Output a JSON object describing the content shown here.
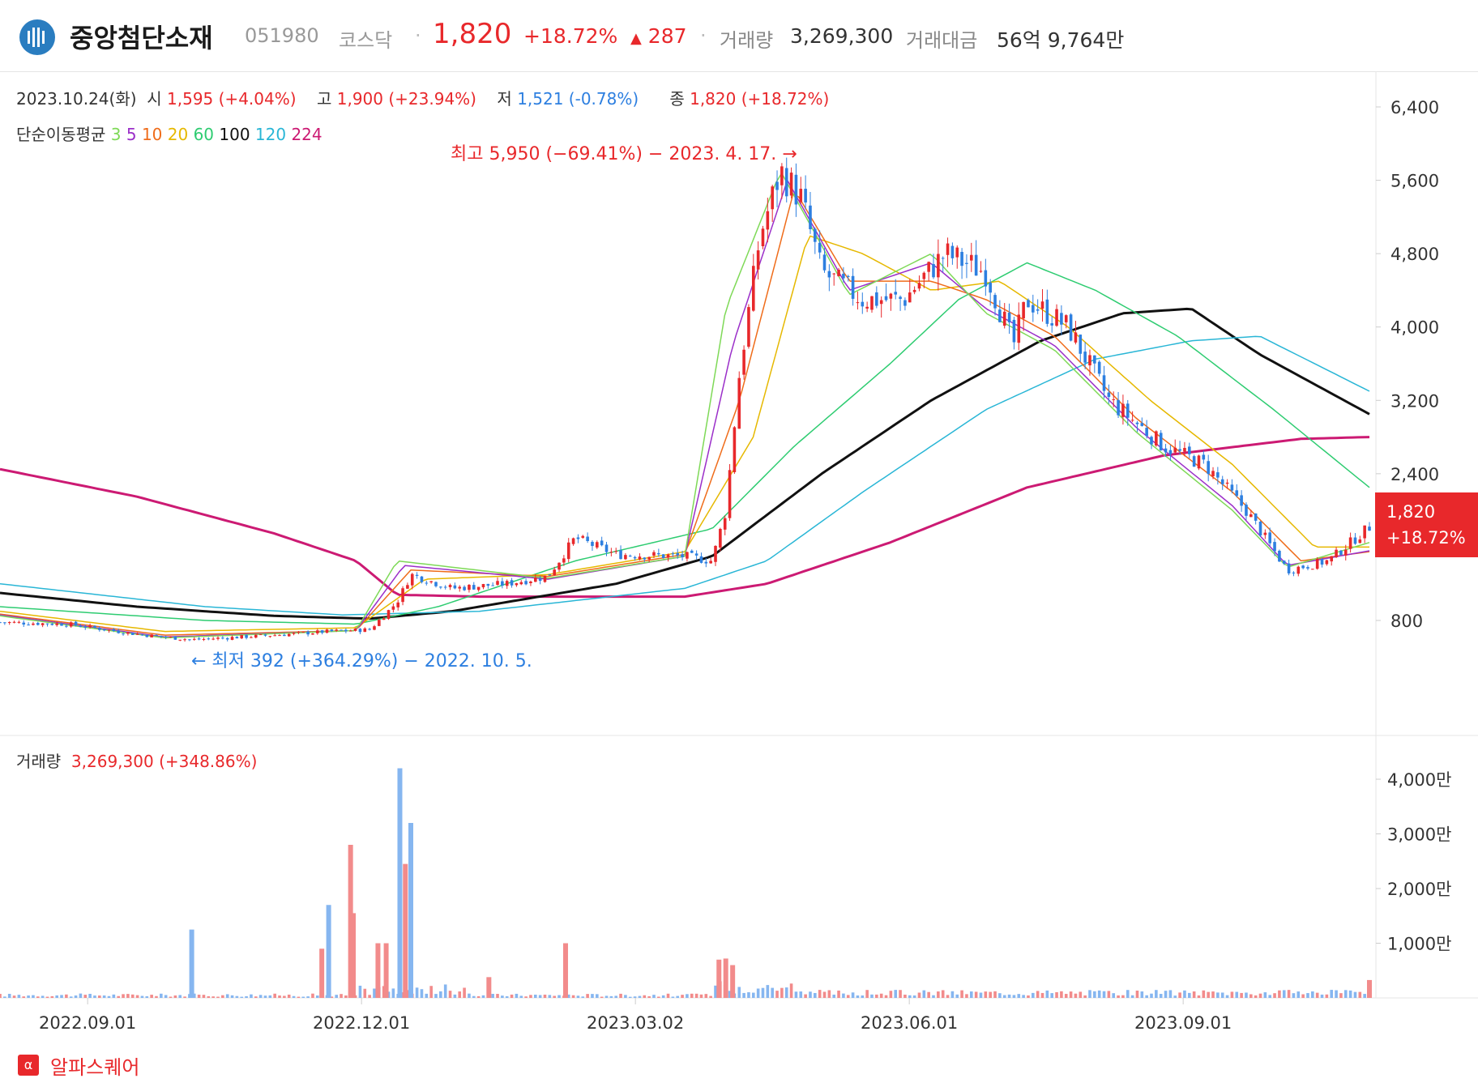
{
  "header": {
    "name": "중앙첨단소재",
    "code": "051980",
    "market": "코스닥",
    "price": "1,820",
    "change_pct": "+18.72%",
    "change_abs": "287",
    "volume_label": "거래량",
    "volume_value": "3,269,300",
    "amount_label": "거래대금",
    "amount_value": "56억 9,764만"
  },
  "ohlc": {
    "date": "2023.10.24(화)",
    "open_label": "시",
    "open_value": "1,595 (+4.04%)",
    "high_label": "고",
    "high_value": "1,900 (+23.94%)",
    "low_label": "저",
    "low_value": "1,521 (-0.78%)",
    "close_label": "종",
    "close_value": "1,820 (+18.72%)"
  },
  "ma_legend": {
    "label": "단순이동평균",
    "items": [
      {
        "text": "3",
        "color": "#7ed957"
      },
      {
        "text": "5",
        "color": "#9b2fc9"
      },
      {
        "text": "10",
        "color": "#ef6c1a"
      },
      {
        "text": "20",
        "color": "#e6b800"
      },
      {
        "text": "60",
        "color": "#2ecc71"
      },
      {
        "text": "100",
        "color": "#111111"
      },
      {
        "text": "120",
        "color": "#29b6d6"
      },
      {
        "text": "224",
        "color": "#cc1a73"
      }
    ]
  },
  "annotations": {
    "high": "최고 5,950 (−69.41%) − 2023. 4. 17. →",
    "low": "← 최저 392 (+364.29%) − 2022. 10. 5."
  },
  "price_badge": {
    "price": "1,820",
    "pct": "+18.72%"
  },
  "volume_header": {
    "label": "거래량",
    "value": "3,269,300 (+348.86%)"
  },
  "watermark": {
    "icon": "α",
    "text": "알파스퀘어"
  },
  "colors": {
    "up": "#f28b8b",
    "down": "#86b6f0",
    "up_line": "#e8282b",
    "down_line": "#2d7fe0"
  },
  "chart_data": {
    "type": "line",
    "price_axis": {
      "ticks": [
        800,
        1600,
        2400,
        3200,
        4000,
        4800,
        5600,
        6400
      ],
      "tick_labels": [
        "800",
        "",
        "2,400",
        "3,200",
        "4,000",
        "4,800",
        "5,600",
        "6,400"
      ]
    },
    "volume_axis": {
      "ticks": [
        1000,
        2000,
        3000,
        4000
      ],
      "tick_labels": [
        "1,000만",
        "2,000만",
        "3,000만",
        "4,000만"
      ],
      "unit": "만"
    },
    "date_labels": [
      "2022.09.01",
      "2022.12.01",
      "2023.03.02",
      "2023.06.01",
      "2023.09.01"
    ],
    "date_positions": [
      0.064,
      0.264,
      0.464,
      0.664,
      0.864
    ],
    "close": [
      {
        "t": 0.0,
        "v": 780
      },
      {
        "t": 0.05,
        "v": 760
      },
      {
        "t": 0.1,
        "v": 650
      },
      {
        "t": 0.14,
        "v": 590
      },
      {
        "t": 0.2,
        "v": 640
      },
      {
        "t": 0.24,
        "v": 680
      },
      {
        "t": 0.27,
        "v": 700
      },
      {
        "t": 0.29,
        "v": 1000
      },
      {
        "t": 0.3,
        "v": 1300
      },
      {
        "t": 0.33,
        "v": 1150
      },
      {
        "t": 0.37,
        "v": 1200
      },
      {
        "t": 0.4,
        "v": 1280
      },
      {
        "t": 0.42,
        "v": 1700
      },
      {
        "t": 0.45,
        "v": 1520
      },
      {
        "t": 0.5,
        "v": 1500
      },
      {
        "t": 0.52,
        "v": 1450
      },
      {
        "t": 0.53,
        "v": 2000
      },
      {
        "t": 0.54,
        "v": 3500
      },
      {
        "t": 0.555,
        "v": 5000
      },
      {
        "t": 0.57,
        "v": 5700
      },
      {
        "t": 0.585,
        "v": 5400
      },
      {
        "t": 0.6,
        "v": 4600
      },
      {
        "t": 0.63,
        "v": 4300
      },
      {
        "t": 0.66,
        "v": 4300
      },
      {
        "t": 0.69,
        "v": 4800
      },
      {
        "t": 0.72,
        "v": 4600
      },
      {
        "t": 0.74,
        "v": 3800
      },
      {
        "t": 0.75,
        "v": 4300
      },
      {
        "t": 0.78,
        "v": 4000
      },
      {
        "t": 0.81,
        "v": 3200
      },
      {
        "t": 0.85,
        "v": 2700
      },
      {
        "t": 0.88,
        "v": 2500
      },
      {
        "t": 0.91,
        "v": 2000
      },
      {
        "t": 0.94,
        "v": 1350
      },
      {
        "t": 0.97,
        "v": 1450
      },
      {
        "t": 1.0,
        "v": 1820
      }
    ],
    "ma": [
      {
        "name": "224",
        "color": "#cc1a73",
        "width": 3,
        "points": [
          {
            "t": 0,
            "v": 2450
          },
          {
            "t": 0.1,
            "v": 2150
          },
          {
            "t": 0.2,
            "v": 1750
          },
          {
            "t": 0.26,
            "v": 1450
          },
          {
            "t": 0.29,
            "v": 1080
          },
          {
            "t": 0.35,
            "v": 1060
          },
          {
            "t": 0.5,
            "v": 1060
          },
          {
            "t": 0.56,
            "v": 1200
          },
          {
            "t": 0.65,
            "v": 1650
          },
          {
            "t": 0.75,
            "v": 2250
          },
          {
            "t": 0.85,
            "v": 2600
          },
          {
            "t": 0.95,
            "v": 2780
          },
          {
            "t": 1.0,
            "v": 2800
          }
        ]
      },
      {
        "name": "100",
        "color": "#111111",
        "width": 3,
        "points": [
          {
            "t": 0,
            "v": 1100
          },
          {
            "t": 0.1,
            "v": 950
          },
          {
            "t": 0.2,
            "v": 850
          },
          {
            "t": 0.27,
            "v": 820
          },
          {
            "t": 0.33,
            "v": 900
          },
          {
            "t": 0.45,
            "v": 1200
          },
          {
            "t": 0.52,
            "v": 1500
          },
          {
            "t": 0.6,
            "v": 2400
          },
          {
            "t": 0.68,
            "v": 3200
          },
          {
            "t": 0.76,
            "v": 3850
          },
          {
            "t": 0.82,
            "v": 4150
          },
          {
            "t": 0.87,
            "v": 4200
          },
          {
            "t": 0.92,
            "v": 3700
          },
          {
            "t": 1.0,
            "v": 3050
          }
        ]
      },
      {
        "name": "120",
        "color": "#29b6d6",
        "width": 1.5,
        "points": [
          {
            "t": 0,
            "v": 1200
          },
          {
            "t": 0.15,
            "v": 950
          },
          {
            "t": 0.25,
            "v": 860
          },
          {
            "t": 0.35,
            "v": 900
          },
          {
            "t": 0.5,
            "v": 1150
          },
          {
            "t": 0.56,
            "v": 1450
          },
          {
            "t": 0.63,
            "v": 2200
          },
          {
            "t": 0.72,
            "v": 3100
          },
          {
            "t": 0.8,
            "v": 3650
          },
          {
            "t": 0.87,
            "v": 3850
          },
          {
            "t": 0.92,
            "v": 3900
          },
          {
            "t": 1.0,
            "v": 3300
          }
        ]
      },
      {
        "name": "60",
        "color": "#2ecc71",
        "width": 1.5,
        "points": [
          {
            "t": 0,
            "v": 950
          },
          {
            "t": 0.15,
            "v": 800
          },
          {
            "t": 0.26,
            "v": 760
          },
          {
            "t": 0.32,
            "v": 950
          },
          {
            "t": 0.42,
            "v": 1450
          },
          {
            "t": 0.52,
            "v": 1800
          },
          {
            "t": 0.58,
            "v": 2700
          },
          {
            "t": 0.65,
            "v": 3600
          },
          {
            "t": 0.7,
            "v": 4300
          },
          {
            "t": 0.75,
            "v": 4700
          },
          {
            "t": 0.8,
            "v": 4400
          },
          {
            "t": 0.86,
            "v": 3900
          },
          {
            "t": 0.93,
            "v": 3100
          },
          {
            "t": 1.0,
            "v": 2250
          }
        ]
      },
      {
        "name": "20",
        "color": "#e6b800",
        "width": 1.5,
        "points": [
          {
            "t": 0,
            "v": 900
          },
          {
            "t": 0.12,
            "v": 680
          },
          {
            "t": 0.26,
            "v": 720
          },
          {
            "t": 0.31,
            "v": 1250
          },
          {
            "t": 0.4,
            "v": 1300
          },
          {
            "t": 0.5,
            "v": 1550
          },
          {
            "t": 0.55,
            "v": 2800
          },
          {
            "t": 0.59,
            "v": 5000
          },
          {
            "t": 0.63,
            "v": 4800
          },
          {
            "t": 0.68,
            "v": 4400
          },
          {
            "t": 0.73,
            "v": 4500
          },
          {
            "t": 0.78,
            "v": 4000
          },
          {
            "t": 0.84,
            "v": 3200
          },
          {
            "t": 0.9,
            "v": 2500
          },
          {
            "t": 0.96,
            "v": 1600
          },
          {
            "t": 1.0,
            "v": 1600
          }
        ]
      },
      {
        "name": "10",
        "color": "#ef6c1a",
        "width": 1.5,
        "points": [
          {
            "t": 0,
            "v": 870
          },
          {
            "t": 0.12,
            "v": 640
          },
          {
            "t": 0.26,
            "v": 690
          },
          {
            "t": 0.3,
            "v": 1350
          },
          {
            "t": 0.4,
            "v": 1280
          },
          {
            "t": 0.5,
            "v": 1520
          },
          {
            "t": 0.54,
            "v": 3200
          },
          {
            "t": 0.58,
            "v": 5500
          },
          {
            "t": 0.62,
            "v": 4500
          },
          {
            "t": 0.68,
            "v": 4500
          },
          {
            "t": 0.72,
            "v": 4300
          },
          {
            "t": 0.77,
            "v": 3900
          },
          {
            "t": 0.83,
            "v": 3000
          },
          {
            "t": 0.9,
            "v": 2200
          },
          {
            "t": 0.95,
            "v": 1450
          },
          {
            "t": 1.0,
            "v": 1550
          }
        ]
      },
      {
        "name": "5",
        "color": "#9b2fc9",
        "width": 1.5,
        "points": [
          {
            "t": 0,
            "v": 860
          },
          {
            "t": 0.12,
            "v": 620
          },
          {
            "t": 0.26,
            "v": 690
          },
          {
            "t": 0.295,
            "v": 1400
          },
          {
            "t": 0.4,
            "v": 1250
          },
          {
            "t": 0.5,
            "v": 1500
          },
          {
            "t": 0.535,
            "v": 3800
          },
          {
            "t": 0.575,
            "v": 5600
          },
          {
            "t": 0.62,
            "v": 4400
          },
          {
            "t": 0.68,
            "v": 4700
          },
          {
            "t": 0.72,
            "v": 4200
          },
          {
            "t": 0.77,
            "v": 3800
          },
          {
            "t": 0.83,
            "v": 2900
          },
          {
            "t": 0.9,
            "v": 2050
          },
          {
            "t": 0.94,
            "v": 1400
          },
          {
            "t": 1.0,
            "v": 1560
          }
        ]
      },
      {
        "name": "3",
        "color": "#7ed957",
        "width": 1.5,
        "points": [
          {
            "t": 0,
            "v": 850
          },
          {
            "t": 0.12,
            "v": 610
          },
          {
            "t": 0.26,
            "v": 690
          },
          {
            "t": 0.29,
            "v": 1450
          },
          {
            "t": 0.4,
            "v": 1260
          },
          {
            "t": 0.5,
            "v": 1500
          },
          {
            "t": 0.53,
            "v": 4200
          },
          {
            "t": 0.57,
            "v": 5700
          },
          {
            "t": 0.62,
            "v": 4350
          },
          {
            "t": 0.68,
            "v": 4800
          },
          {
            "t": 0.72,
            "v": 4150
          },
          {
            "t": 0.77,
            "v": 3750
          },
          {
            "t": 0.83,
            "v": 2850
          },
          {
            "t": 0.9,
            "v": 2000
          },
          {
            "t": 0.94,
            "v": 1380
          },
          {
            "t": 1.0,
            "v": 1650
          }
        ]
      }
    ],
    "volume_spikes": [
      {
        "t": 0.14,
        "v": 1250,
        "up": false
      },
      {
        "t": 0.235,
        "v": 900,
        "up": true
      },
      {
        "t": 0.24,
        "v": 1700,
        "up": false
      },
      {
        "t": 0.256,
        "v": 2800,
        "up": true
      },
      {
        "t": 0.258,
        "v": 1550,
        "up": true
      },
      {
        "t": 0.276,
        "v": 1000,
        "up": true
      },
      {
        "t": 0.282,
        "v": 1000,
        "up": true
      },
      {
        "t": 0.292,
        "v": 4200,
        "up": false
      },
      {
        "t": 0.296,
        "v": 2450,
        "up": true
      },
      {
        "t": 0.3,
        "v": 3200,
        "up": false
      },
      {
        "t": 0.357,
        "v": 380,
        "up": true
      },
      {
        "t": 0.413,
        "v": 1000,
        "up": true
      },
      {
        "t": 0.525,
        "v": 700,
        "up": true
      },
      {
        "t": 0.53,
        "v": 720,
        "up": true
      },
      {
        "t": 0.535,
        "v": 600,
        "up": true
      }
    ],
    "last_volume": 327
  }
}
